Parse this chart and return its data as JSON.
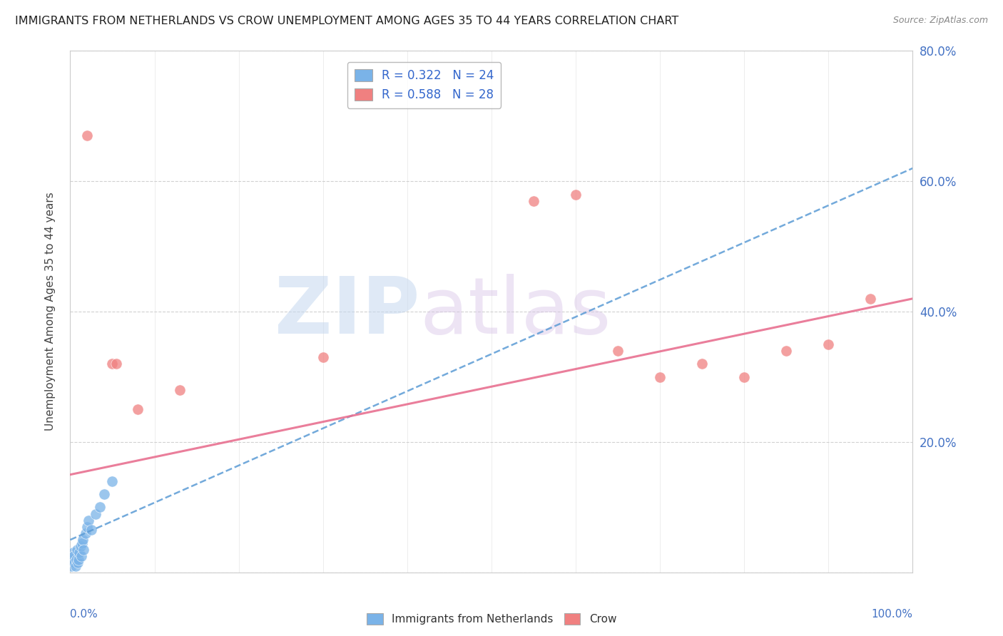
{
  "title": "IMMIGRANTS FROM NETHERLANDS VS CROW UNEMPLOYMENT AMONG AGES 35 TO 44 YEARS CORRELATION CHART",
  "source": "Source: ZipAtlas.com",
  "ylabel": "Unemployment Among Ages 35 to 44 years",
  "netherlands_points": [
    [
      0.1,
      1.0
    ],
    [
      0.2,
      2.0
    ],
    [
      0.3,
      3.0
    ],
    [
      0.4,
      2.5
    ],
    [
      0.5,
      1.5
    ],
    [
      0.6,
      1.0
    ],
    [
      0.7,
      2.0
    ],
    [
      0.8,
      3.5
    ],
    [
      0.9,
      1.5
    ],
    [
      1.0,
      2.0
    ],
    [
      1.1,
      3.0
    ],
    [
      1.2,
      4.0
    ],
    [
      1.3,
      2.5
    ],
    [
      1.4,
      4.5
    ],
    [
      1.5,
      5.0
    ],
    [
      1.6,
      3.5
    ],
    [
      1.8,
      6.0
    ],
    [
      2.0,
      7.0
    ],
    [
      2.2,
      8.0
    ],
    [
      2.5,
      6.5
    ],
    [
      3.0,
      9.0
    ],
    [
      3.5,
      10.0
    ],
    [
      4.0,
      12.0
    ],
    [
      5.0,
      14.0
    ]
  ],
  "crow_points": [
    [
      2.0,
      67.0
    ],
    [
      5.0,
      32.0
    ],
    [
      5.5,
      32.0
    ],
    [
      8.0,
      25.0
    ],
    [
      13.0,
      28.0
    ],
    [
      30.0,
      33.0
    ],
    [
      55.0,
      57.0
    ],
    [
      60.0,
      58.0
    ],
    [
      65.0,
      34.0
    ],
    [
      70.0,
      30.0
    ],
    [
      75.0,
      32.0
    ],
    [
      80.0,
      30.0
    ],
    [
      85.0,
      34.0
    ],
    [
      90.0,
      35.0
    ],
    [
      95.0,
      42.0
    ]
  ],
  "netherlands_color": "#7ab3e8",
  "crow_color": "#f08080",
  "netherlands_line_color": "#5b9bd5",
  "crow_line_color": "#e87090",
  "netherlands_trend_x": [
    0,
    100
  ],
  "netherlands_trend_y": [
    5.0,
    62.0
  ],
  "crow_trend_x": [
    0,
    100
  ],
  "crow_trend_y": [
    15.0,
    42.0
  ],
  "background_color": "#ffffff",
  "grid_color": "#cccccc",
  "watermark_color_zip": "#c8d8f0",
  "watermark_color_atlas": "#d8c8e8",
  "xlim": [
    0,
    100
  ],
  "ylim": [
    0,
    80
  ],
  "yticks": [
    0,
    20,
    40,
    60,
    80
  ],
  "ytick_labels": [
    "",
    "20.0%",
    "40.0%",
    "60.0%",
    "80.0%"
  ]
}
